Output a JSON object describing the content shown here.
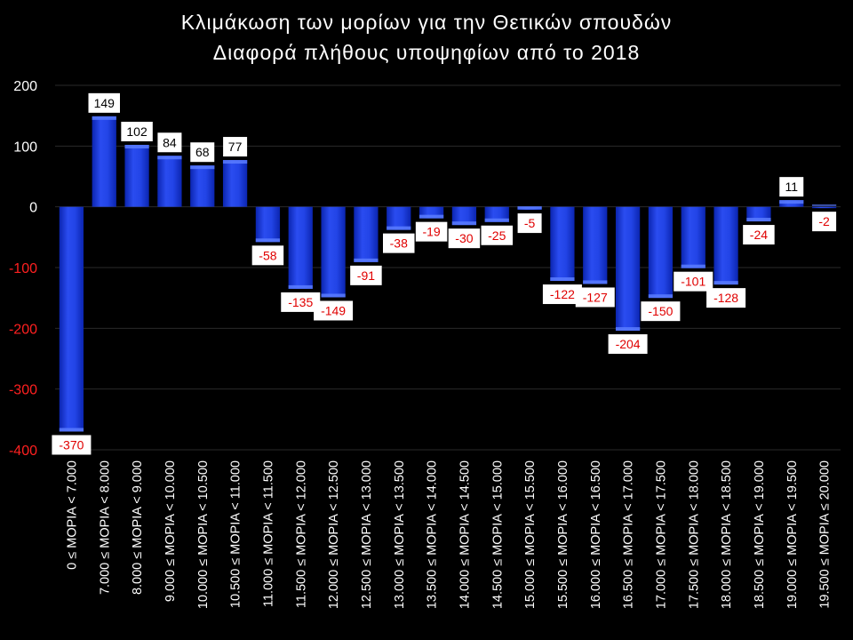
{
  "chart_data": {
    "type": "bar",
    "title": "Κλιμάκωση των μορίων για την Θετικών σπουδών",
    "subtitle": "Διαφορά πλήθους υποψηφίων από το 2018",
    "categories": [
      "0 ≤ ΜΟΡΙΑ < 7.000",
      "7.000 ≤ ΜΟΡΙΑ < 8.000",
      "8.000 ≤ ΜΟΡΙΑ < 9.000",
      "9.000 ≤ ΜΟΡΙΑ < 10.000",
      "10.000 ≤ ΜΟΡΙΑ < 10.500",
      "10.500 ≤ ΜΟΡΙΑ < 11.000",
      "11.000 ≤ ΜΟΡΙΑ < 11.500",
      "11.500 ≤ ΜΟΡΙΑ < 12.000",
      "12.000 ≤ ΜΟΡΙΑ < 12.500",
      "12.500 ≤ ΜΟΡΙΑ < 13.000",
      "13.000 ≤ ΜΟΡΙΑ < 13.500",
      "13.500 ≤ ΜΟΡΙΑ < 14.000",
      "14.000 ≤ ΜΟΡΙΑ < 14.500",
      "14.500 ≤ ΜΟΡΙΑ < 15.000",
      "15.000 ≤ ΜΟΡΙΑ < 15.500",
      "15.500 ≤ ΜΟΡΙΑ < 16.000",
      "16.000 ≤ ΜΟΡΙΑ < 16.500",
      "16.500 ≤ ΜΟΡΙΑ < 17.000",
      "17.000 ≤ ΜΟΡΙΑ < 17.500",
      "17.500 ≤ ΜΟΡΙΑ < 18.000",
      "18.000 ≤ ΜΟΡΙΑ < 18.500",
      "18.500 ≤ ΜΟΡΙΑ < 19.000",
      "19.000 ≤ ΜΟΡΙΑ < 19.500",
      "19.500 ≤ ΜΟΡΙΑ ≤ 20.000"
    ],
    "values": [
      -370,
      149,
      102,
      84,
      68,
      77,
      -58,
      -135,
      -149,
      -91,
      -38,
      -19,
      -30,
      -25,
      -5,
      -122,
      -127,
      -204,
      -150,
      -101,
      -128,
      -24,
      11,
      -2
    ],
    "ylim": [
      -400,
      200
    ],
    "yticks": [
      200,
      100,
      0,
      -100,
      -200,
      -300,
      -400
    ],
    "grid": true,
    "xlabel": "",
    "ylabel": "",
    "colors": {
      "background": "#000000",
      "bar": "#1536d6",
      "bar_highlight": "#5a7dff",
      "positive_tick": "#ffffff",
      "negative_tick": "#ff2020",
      "positive_label": "#000000",
      "negative_label": "#e00000",
      "gridline": "#2a2a2a"
    }
  }
}
